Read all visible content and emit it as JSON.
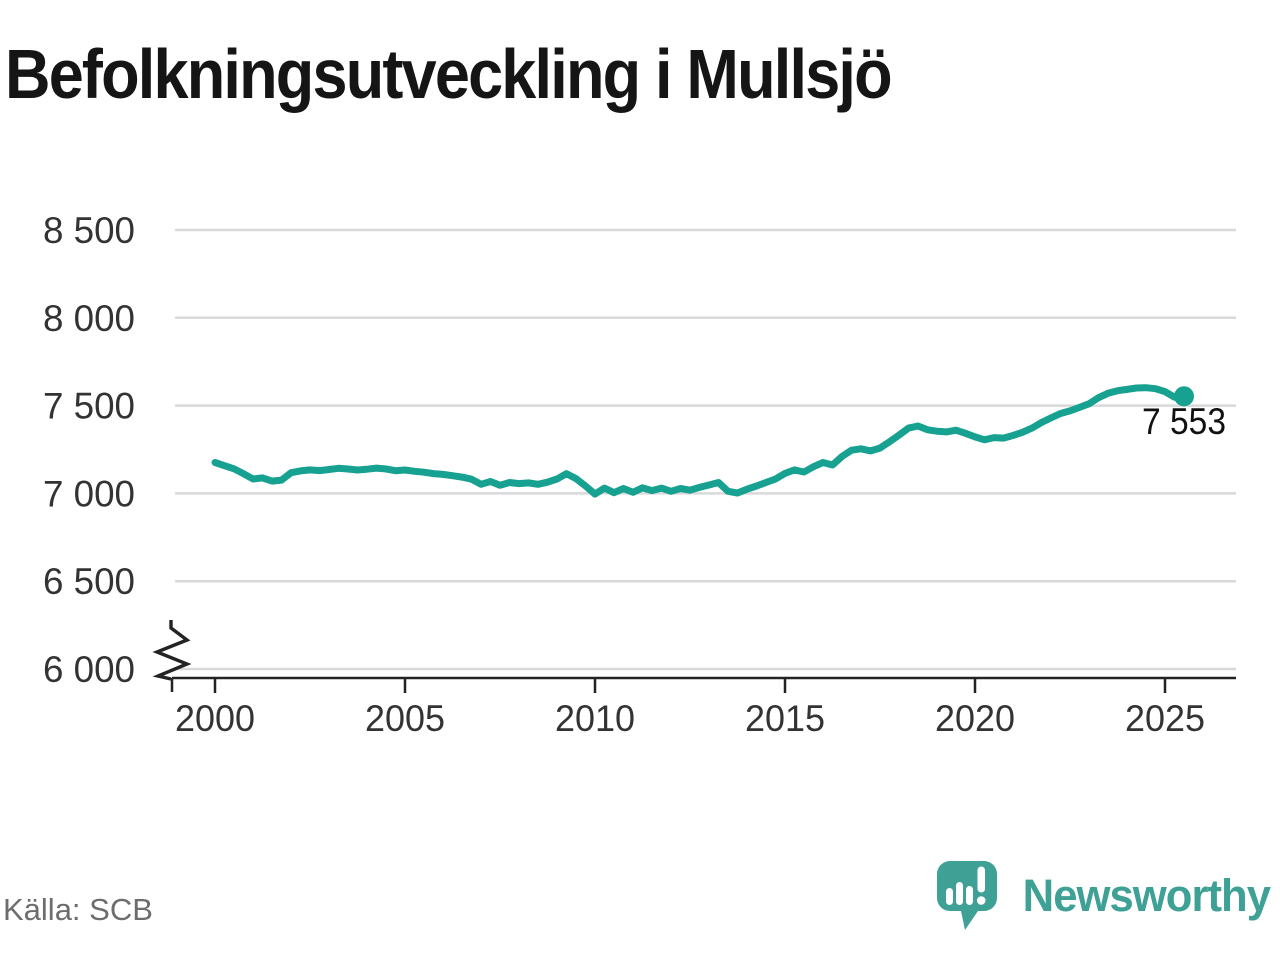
{
  "title": "Befolkningsutveckling i Mullsjö",
  "source": {
    "label": "Källa: SCB"
  },
  "branding": {
    "name": "Newsworthy",
    "color": "#3fa195"
  },
  "chart_data": {
    "type": "line",
    "title": "Befolkningsutveckling i Mullsjö",
    "xlabel": "",
    "ylabel": "",
    "x_unit": "year",
    "xlim": [
      2000,
      2026.9
    ],
    "ylim": [
      6000,
      8500
    ],
    "axis_break_at_bottom": true,
    "grid": "horizontal",
    "legend": "none",
    "yticks": [
      {
        "value": 8500,
        "label": "8 500"
      },
      {
        "value": 8000,
        "label": "8 000"
      },
      {
        "value": 7500,
        "label": "7 500"
      },
      {
        "value": 7000,
        "label": "7 000"
      },
      {
        "value": 6500,
        "label": "6 500"
      },
      {
        "value": 6000,
        "label": "6 000"
      }
    ],
    "xticks": [
      {
        "value": 2000,
        "label": "2000"
      },
      {
        "value": 2005,
        "label": "2005"
      },
      {
        "value": 2010,
        "label": "2010"
      },
      {
        "value": 2015,
        "label": "2015"
      },
      {
        "value": 2020,
        "label": "2020"
      },
      {
        "value": 2025,
        "label": "2025"
      }
    ],
    "end_label": "7 553",
    "latest_value": 7553,
    "latest_x": 2025.5,
    "series": [
      {
        "name": "Befolkning i Mullsjö",
        "color": "#17a190",
        "x_start": 2000,
        "x_step": 0.25,
        "values": [
          7176,
          7158,
          7140,
          7112,
          7082,
          7088,
          7070,
          7076,
          7118,
          7128,
          7134,
          7130,
          7136,
          7143,
          7139,
          7133,
          7138,
          7144,
          7139,
          7129,
          7133,
          7126,
          7121,
          7113,
          7108,
          7101,
          7093,
          7081,
          7052,
          7068,
          7046,
          7062,
          7056,
          7060,
          7052,
          7064,
          7082,
          7112,
          7084,
          7042,
          6996,
          7030,
          7004,
          7028,
          7006,
          7032,
          7016,
          7030,
          7012,
          7028,
          7018,
          7034,
          7048,
          7062,
          7012,
          7002,
          7024,
          7042,
          7062,
          7082,
          7114,
          7134,
          7122,
          7152,
          7176,
          7162,
          7210,
          7246,
          7254,
          7242,
          7258,
          7294,
          7332,
          7372,
          7384,
          7362,
          7354,
          7350,
          7360,
          7342,
          7322,
          7305,
          7318,
          7315,
          7330,
          7348,
          7372,
          7404,
          7430,
          7455,
          7470,
          7490,
          7510,
          7545,
          7570,
          7585,
          7592,
          7600,
          7602,
          7596,
          7580,
          7548,
          7553
        ]
      }
    ]
  }
}
